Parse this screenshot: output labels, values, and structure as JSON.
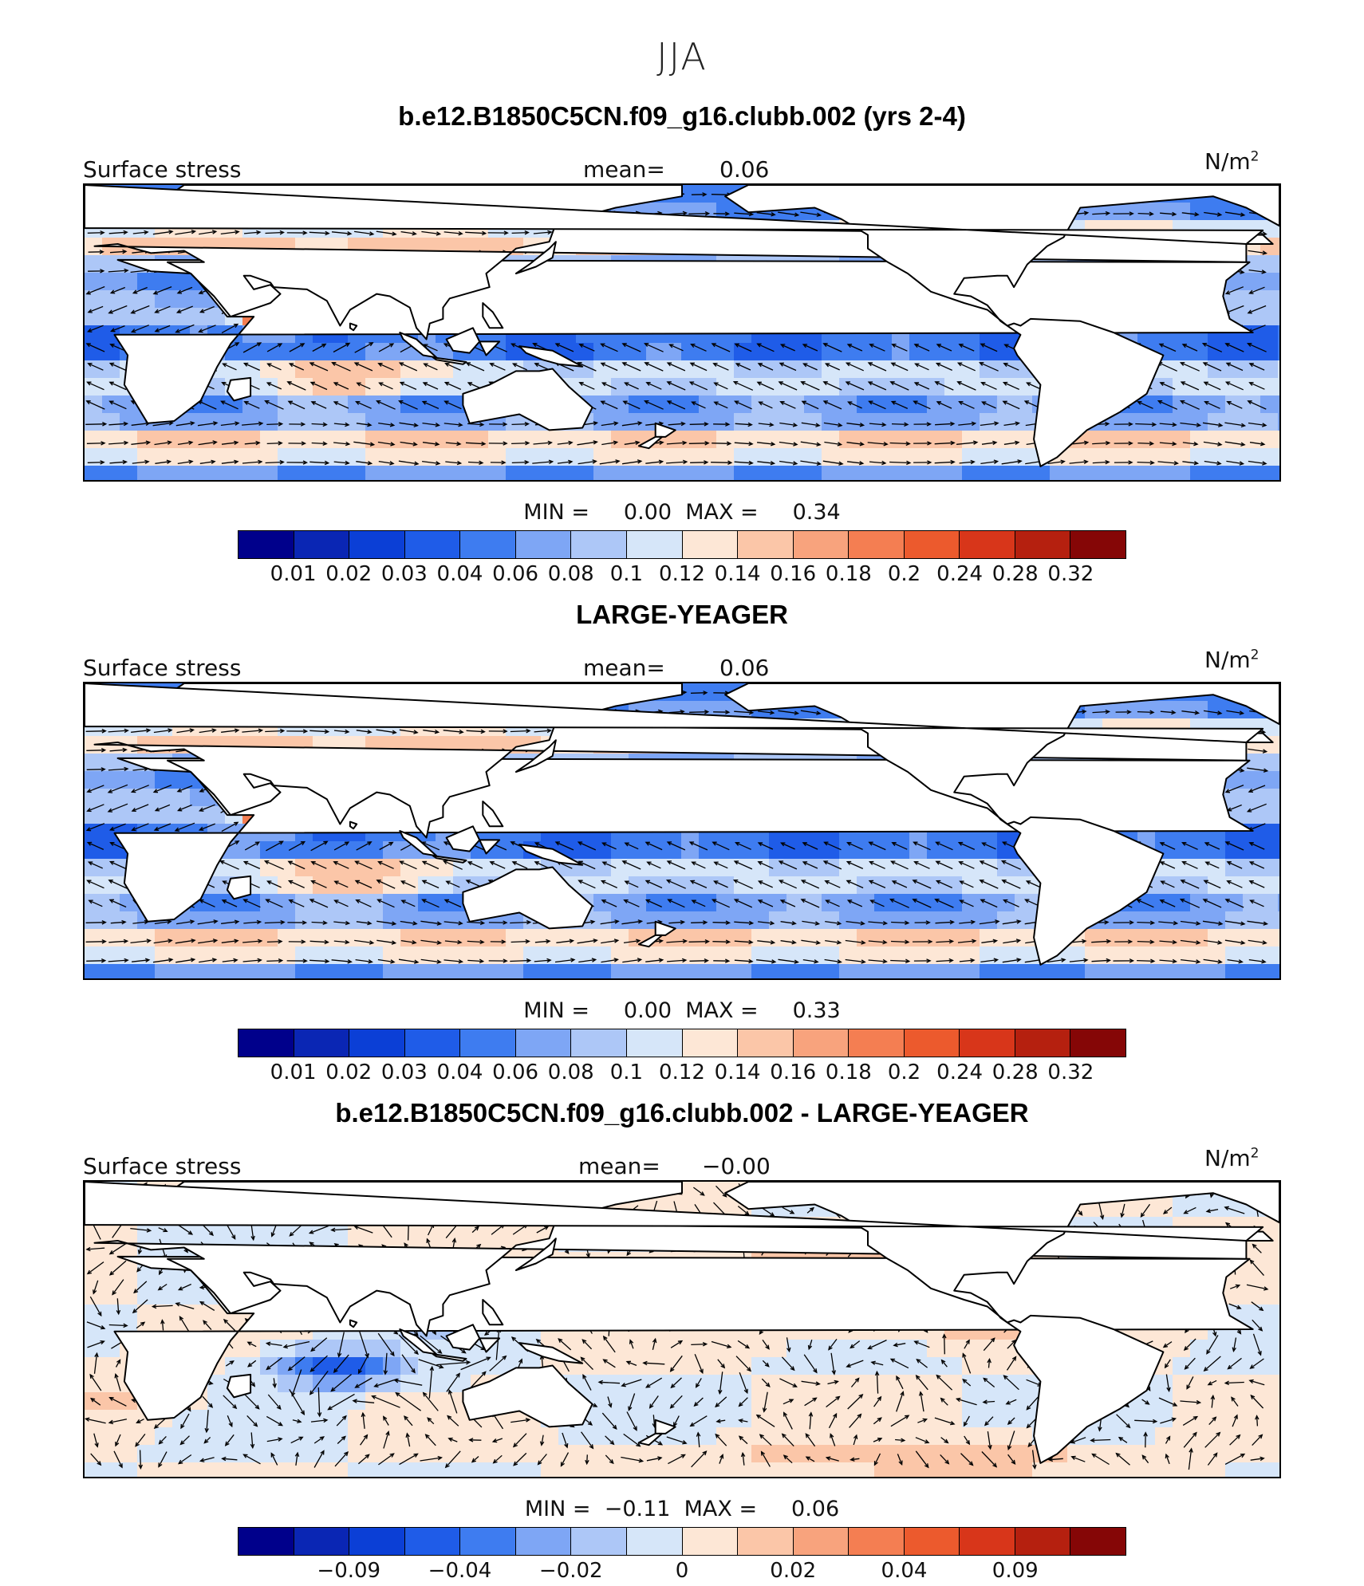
{
  "figure": {
    "season_title": "JJA"
  },
  "colors": {
    "scale": [
      "#00008b",
      "#0a26b4",
      "#0b3fd6",
      "#1f5ce8",
      "#3e7cf0",
      "#7ea6f5",
      "#adc7f7",
      "#d6e6f9",
      "#fde7d6",
      "#fbc6a8",
      "#f8a37d",
      "#f47e52",
      "#ec5a2d",
      "#d8361a",
      "#b5200f",
      "#850606"
    ],
    "land": "#ffffff",
    "coast": "#000000",
    "arrow": "#000000"
  },
  "chart_data": [
    {
      "type": "heatmap",
      "subtype": "vector-field map",
      "title": "b.e12.B1850C5CN.f09_g16.clubb.002 (yrs 2-4)",
      "variable": "Surface stress",
      "mean_label": "mean=",
      "mean": "0.06",
      "units_base": "N/m",
      "units_exp": "2",
      "min_label": "MIN =",
      "min": "0.00",
      "max_label": "MAX =",
      "max": "0.34",
      "colorbar_ticks": [
        "0.01",
        "0.02",
        "0.03",
        "0.04",
        "0.06",
        "0.08",
        "0.1",
        "0.12",
        "0.14",
        "0.16",
        "0.18",
        "0.2",
        "0.24",
        "0.28",
        "0.32"
      ],
      "mode": "abs",
      "seed": 11
    },
    {
      "type": "heatmap",
      "subtype": "vector-field map",
      "title": "LARGE-YEAGER",
      "variable": "Surface stress",
      "mean_label": "mean=",
      "mean": "0.06",
      "units_base": "N/m",
      "units_exp": "2",
      "min_label": "MIN =",
      "min": "0.00",
      "max_label": "MAX =",
      "max": "0.33",
      "colorbar_ticks": [
        "0.01",
        "0.02",
        "0.03",
        "0.04",
        "0.06",
        "0.08",
        "0.1",
        "0.12",
        "0.14",
        "0.16",
        "0.18",
        "0.2",
        "0.24",
        "0.28",
        "0.32"
      ],
      "mode": "abs",
      "seed": 23
    },
    {
      "type": "heatmap",
      "subtype": "vector-field map",
      "title": "b.e12.B1850C5CN.f09_g16.clubb.002 - LARGE-YEAGER",
      "variable": "Surface stress",
      "mean_label": "mean=",
      "mean": "−0.00",
      "units_base": "N/m",
      "units_exp": "2",
      "min_label": "MIN =",
      "min": "−0.11",
      "max_label": "MAX =",
      "max": "0.06",
      "colorbar_ticks": [
        "−0.09",
        "−0.04",
        "−0.02",
        "0",
        "0.02",
        "0.04",
        "0.09"
      ],
      "mode": "diff",
      "seed": 37
    }
  ]
}
